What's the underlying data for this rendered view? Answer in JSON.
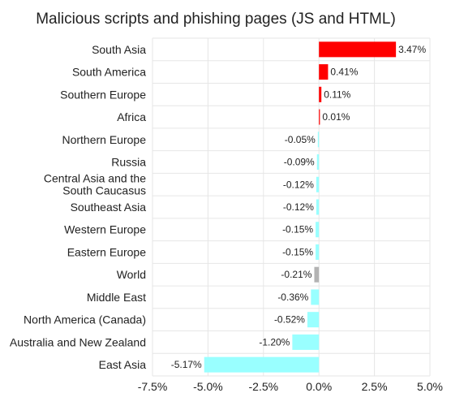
{
  "chart_data": {
    "type": "bar",
    "orientation": "horizontal",
    "title": "Malicious scripts and phishing pages (JS and HTML)",
    "xlabel": "",
    "ylabel": "",
    "xlim": [
      -7.5,
      5.0
    ],
    "grid": true,
    "legend": "none",
    "x_ticks": [
      -7.5,
      -5.0,
      -2.5,
      0.0,
      2.5,
      5.0
    ],
    "x_tick_labels": [
      "-7.5%",
      "-5.0%",
      "-2.5%",
      "0.0%",
      "2.5%",
      "5.0%"
    ],
    "categories": [
      "South Asia",
      "South America",
      "Southern Europe",
      "Africa",
      "Northern Europe",
      "Russia",
      "Central Asia and the South Caucasus",
      "Southeast Asia",
      "Western Europe",
      "Eastern Europe",
      "World",
      "Middle East",
      "North America (Canada)",
      "Australia and New Zealand",
      "East Asia"
    ],
    "values": [
      3.47,
      0.41,
      0.11,
      0.01,
      -0.05,
      -0.09,
      -0.12,
      -0.12,
      -0.15,
      -0.15,
      -0.21,
      -0.36,
      -0.52,
      -1.2,
      -5.17
    ],
    "data_labels": [
      "3.47%",
      "0.41%",
      "0.11%",
      "0.01%",
      "-0.05%",
      "-0.09%",
      "-0.12%",
      "-0.12%",
      "-0.15%",
      "-0.15%",
      "-0.21%",
      "-0.36%",
      "-0.52%",
      "-1.20%",
      "-5.17%"
    ],
    "colors": {
      "positive": "#ff0000",
      "negative": "#99ffff",
      "world": "#b3b3b3",
      "grid": "#e6e6e6",
      "text": "#222222"
    }
  }
}
